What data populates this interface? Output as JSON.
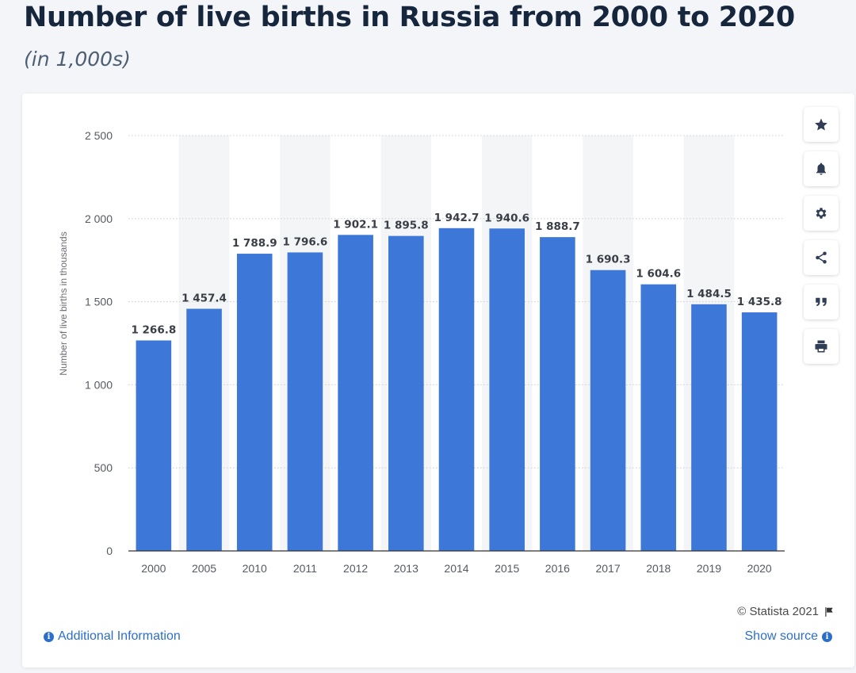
{
  "header": {
    "title": "Number of live births in Russia from 2000 to 2020",
    "subtitle": "(in 1,000s)"
  },
  "chart_data": {
    "type": "bar",
    "categories": [
      "2000",
      "2005",
      "2010",
      "2011",
      "2012",
      "2013",
      "2014",
      "2015",
      "2016",
      "2017",
      "2018",
      "2019",
      "2020"
    ],
    "values": [
      1266.8,
      1457.4,
      1788.9,
      1796.6,
      1902.1,
      1895.8,
      1942.7,
      1940.6,
      1888.7,
      1690.3,
      1604.6,
      1484.5,
      1435.8
    ],
    "value_labels": [
      "1 266.8",
      "1 457.4",
      "1 788.9",
      "1 796.6",
      "1 902.1",
      "1 895.8",
      "1 942.7",
      "1 940.6",
      "1 888.7",
      "1 690.3",
      "1 604.6",
      "1 484.5",
      "1 435.8"
    ],
    "ylabel": "Number of live births in thousands",
    "xlabel": "",
    "ylim": [
      0,
      2500
    ],
    "yticks": [
      0,
      500,
      1000,
      1500,
      2000,
      2500
    ],
    "ytick_labels": [
      "0",
      "500",
      "1 000",
      "1 500",
      "2 000",
      "2 500"
    ],
    "grid": true,
    "colors": {
      "bar": "#3d78d8",
      "band": "#f4f5f7"
    }
  },
  "tools": [
    {
      "name": "favorite",
      "icon": "star-icon"
    },
    {
      "name": "notify",
      "icon": "bell-icon"
    },
    {
      "name": "settings",
      "icon": "gear-icon"
    },
    {
      "name": "share",
      "icon": "share-icon"
    },
    {
      "name": "cite",
      "icon": "quote-icon"
    },
    {
      "name": "print",
      "icon": "print-icon"
    }
  ],
  "footer": {
    "copyright": "© Statista 2021",
    "additional_info": "Additional Information",
    "show_source": "Show source"
  }
}
